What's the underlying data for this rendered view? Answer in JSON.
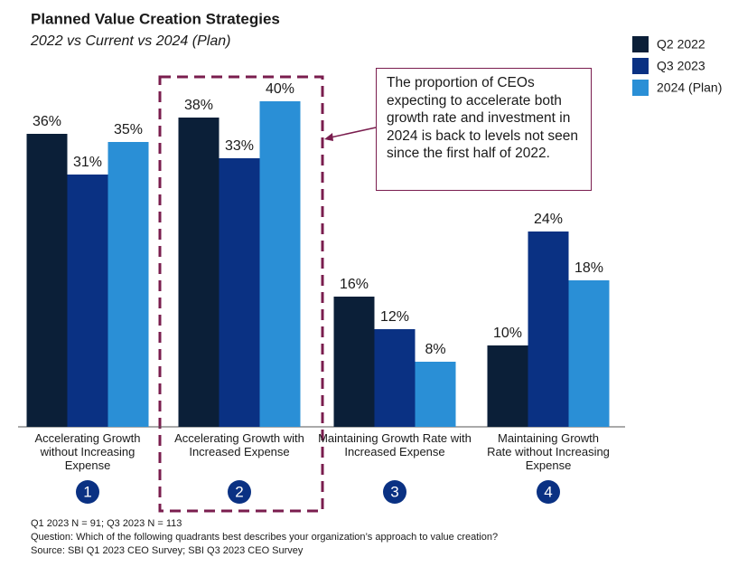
{
  "chart_data": {
    "type": "bar",
    "title": "Planned Value Creation Strategies",
    "subtitle": "2022 vs Current vs 2024 (Plan)",
    "categories": [
      "Accelerating Growth without Increasing Expense",
      "Accelerating Growth with Increased Expense",
      "Maintaining Growth Rate with Increased Expense",
      "Maintaining Growth Rate without Increasing Expense"
    ],
    "category_numbers": [
      "1",
      "2",
      "3",
      "4"
    ],
    "series": [
      {
        "name": "Q2 2022",
        "color": "#0b1f38",
        "values": [
          36,
          38,
          16,
          10
        ],
        "value_labels": [
          "36%",
          "38%",
          "16%",
          "10%"
        ]
      },
      {
        "name": "Q3 2023",
        "color": "#0a3183",
        "values": [
          31,
          33,
          12,
          24
        ],
        "value_labels": [
          "31%",
          "33%",
          "12%",
          "24%"
        ]
      },
      {
        "name": "2024 (Plan)",
        "color": "#2a8fd6",
        "values": [
          35,
          40,
          8,
          18
        ],
        "value_labels": [
          "35%",
          "40%",
          "8%",
          "18%"
        ]
      }
    ],
    "ylim": [
      0,
      40
    ],
    "annotation": "The proportion of CEOs expecting to accelerate both growth rate and investment in 2024 is back to levels not seen since the first half of 2022.",
    "notes": [
      "Q1 2023 N = 91; Q3 2023 N = 113",
      "Question: Which of the following quadrants best describes your organization’s approach to value creation?",
      "Source: SBI Q1 2023 CEO Survey; SBI Q3 2023 CEO Survey"
    ]
  }
}
